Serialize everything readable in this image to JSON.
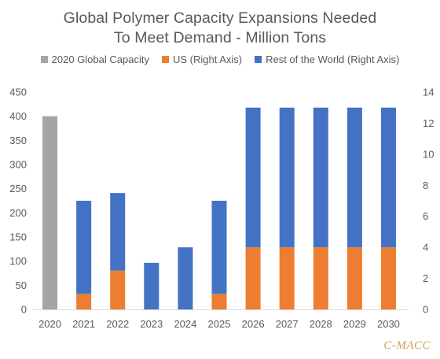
{
  "chart_data": {
    "type": "bar",
    "title_lines": [
      "Global Polymer Capacity Expansions Needed",
      "To Meet Demand - Million Tons"
    ],
    "categories": [
      "2020",
      "2021",
      "2022",
      "2023",
      "2024",
      "2025",
      "2026",
      "2027",
      "2028",
      "2029",
      "2030"
    ],
    "left_axis": {
      "ylim": [
        0,
        450
      ],
      "ticks": [
        "0",
        "50",
        "100",
        "150",
        "200",
        "250",
        "300",
        "350",
        "400",
        "450"
      ]
    },
    "right_axis": {
      "ylim": [
        0,
        14
      ],
      "ticks": [
        "0",
        "2",
        "4",
        "6",
        "8",
        "10",
        "12",
        "14"
      ]
    },
    "stacked_right": true,
    "series": [
      {
        "name": "2020 Global Capacity",
        "axis": "left",
        "color": "#a5a5a5",
        "values": [
          400,
          null,
          null,
          null,
          null,
          null,
          null,
          null,
          null,
          null,
          null
        ]
      },
      {
        "name": "US (Right Axis)",
        "axis": "right",
        "color": "#ed7d31",
        "values": [
          0,
          1,
          2.5,
          0,
          0,
          1,
          4,
          4,
          4,
          4,
          4
        ]
      },
      {
        "name": "Rest of the World (Right Axis)",
        "axis": "right",
        "color": "#4472c4",
        "values": [
          0,
          6,
          5,
          3,
          4,
          6,
          9,
          9,
          9,
          9,
          9
        ]
      }
    ],
    "grid": false,
    "legend_position": "top"
  },
  "watermark": "C-MACC"
}
